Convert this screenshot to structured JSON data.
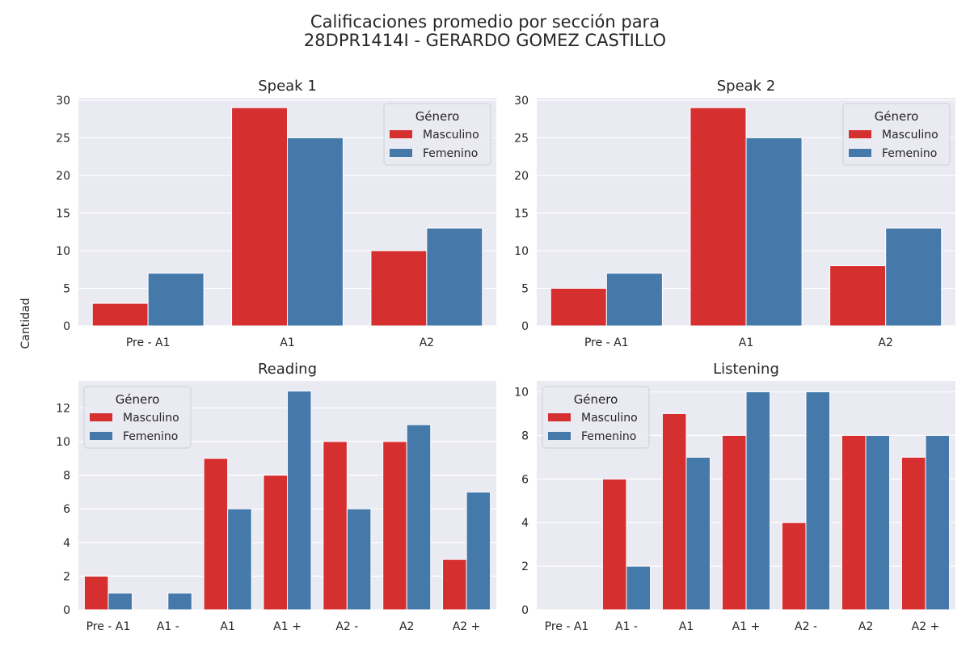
{
  "figure": {
    "title_line1": "Calificaciones promedio por sección para",
    "title_line2": "28DPR1414I - GERARDO GOMEZ CASTILLO",
    "shared_ylabel": "Cantidad"
  },
  "colors": {
    "Masculino": "#d62f30",
    "Femenino": "#4479aa",
    "plot_bg": "#eaeaf2",
    "grid": "#ffffff"
  },
  "chart_data": [
    {
      "type": "bar",
      "title": "Speak 1",
      "categories": [
        "Pre - A1",
        "A1",
        "A2"
      ],
      "series": [
        {
          "name": "Masculino",
          "values": [
            3,
            29,
            10
          ]
        },
        {
          "name": "Femenino",
          "values": [
            7,
            25,
            13
          ]
        }
      ],
      "ylim": [
        0,
        30.3
      ],
      "yticks": [
        0,
        5,
        10,
        15,
        20,
        25,
        30
      ],
      "legend": {
        "title": "Género",
        "placement": "upper right"
      },
      "grid": true
    },
    {
      "type": "bar",
      "title": "Speak 2",
      "categories": [
        "Pre - A1",
        "A1",
        "A2"
      ],
      "series": [
        {
          "name": "Masculino",
          "values": [
            5,
            29,
            8
          ]
        },
        {
          "name": "Femenino",
          "values": [
            7,
            25,
            13
          ]
        }
      ],
      "ylim": [
        0,
        30.3
      ],
      "yticks": [
        0,
        5,
        10,
        15,
        20,
        25,
        30
      ],
      "legend": {
        "title": "Género",
        "placement": "upper right"
      },
      "grid": true
    },
    {
      "type": "bar",
      "title": "Reading",
      "categories": [
        "Pre - A1",
        "A1 -",
        "A1",
        "A1 +",
        "A2 -",
        "A2",
        "A2 +"
      ],
      "series": [
        {
          "name": "Masculino",
          "values": [
            2,
            0,
            9,
            8,
            10,
            10,
            3
          ]
        },
        {
          "name": "Femenino",
          "values": [
            1,
            1,
            6,
            13,
            6,
            11,
            7
          ]
        }
      ],
      "ylim": [
        0,
        13.6
      ],
      "yticks": [
        0,
        2,
        4,
        6,
        8,
        10,
        12
      ],
      "legend": {
        "title": "Género",
        "placement": "upper left"
      },
      "grid": true
    },
    {
      "type": "bar",
      "title": "Listening",
      "categories": [
        "Pre - A1",
        "A1 -",
        "A1",
        "A1 +",
        "A2 -",
        "A2",
        "A2 +"
      ],
      "series": [
        {
          "name": "Masculino",
          "values": [
            0,
            6,
            9,
            8,
            4,
            8,
            7
          ]
        },
        {
          "name": "Femenino",
          "values": [
            0,
            2,
            7,
            10,
            10,
            8,
            8
          ]
        }
      ],
      "ylim": [
        0,
        10.5
      ],
      "yticks": [
        0,
        2,
        4,
        6,
        8,
        10
      ],
      "legend": {
        "title": "Género",
        "placement": "upper left"
      },
      "grid": true
    }
  ]
}
